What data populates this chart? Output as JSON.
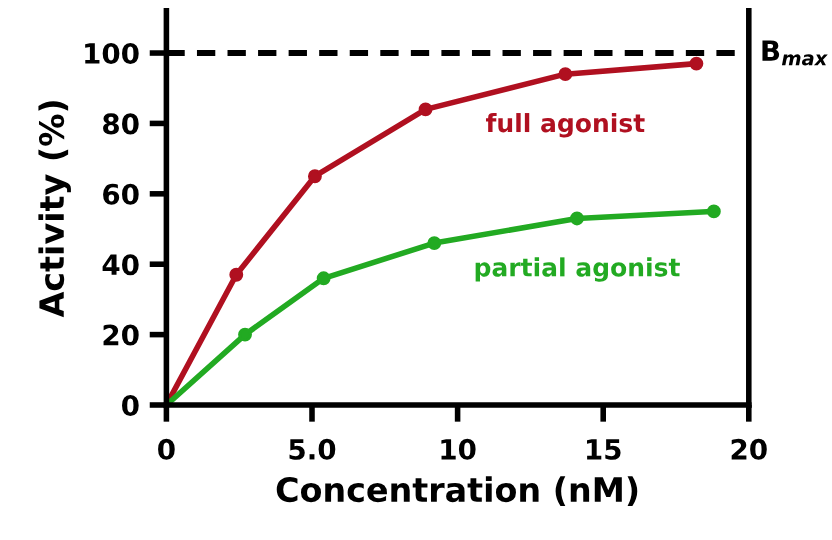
{
  "chart_data": {
    "type": "line",
    "xlabel": "Concentration (nM)",
    "ylabel": "Activity (%)",
    "xlim": [
      0,
      20
    ],
    "ylim": [
      0,
      112
    ],
    "xticks": [
      0,
      {
        "value": 5,
        "label": "5.0"
      },
      10,
      15,
      20
    ],
    "yticks": [
      0,
      20,
      40,
      60,
      80,
      100
    ],
    "grid": false,
    "legend": false,
    "marker": "circle",
    "line_style": "solid",
    "ref_lines": [
      {
        "axis": "y",
        "value": 100,
        "label": "B$_{max}$",
        "color": "#000000",
        "line_style": "dashed"
      }
    ],
    "series": [
      {
        "name": "full agonist",
        "color": "#b01020",
        "x": [
          0,
          2.4,
          5.1,
          8.9,
          13.7,
          18.2
        ],
        "values": [
          0,
          37,
          65,
          84,
          94,
          97
        ]
      },
      {
        "name": "partial agonist",
        "color": "#22aa22",
        "x": [
          0,
          2.7,
          5.4,
          9.2,
          14.1,
          18.8
        ],
        "values": [
          0,
          20,
          36,
          46,
          53,
          55
        ]
      }
    ]
  }
}
